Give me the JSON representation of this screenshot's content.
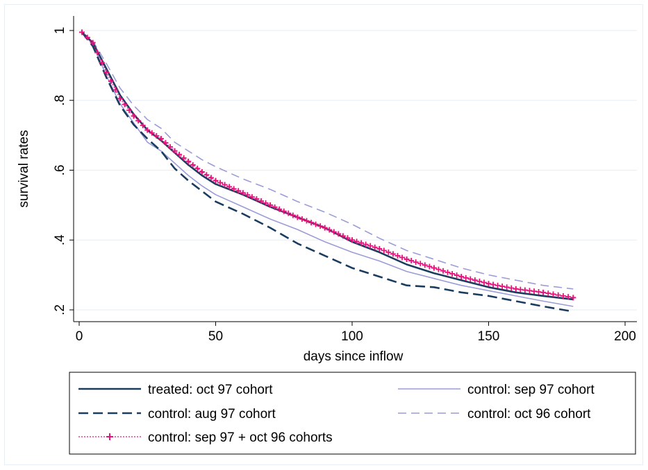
{
  "chart_data": {
    "type": "line",
    "xlabel": "days since inflow",
    "ylabel": "survival rates",
    "xlim": [
      0,
      200
    ],
    "ylim": [
      0.2,
      1.0
    ],
    "x_ticks": [
      0,
      50,
      100,
      150,
      200
    ],
    "x_tick_labels": [
      "0",
      "50",
      "100",
      "150",
      "200"
    ],
    "y_ticks": [
      0.2,
      0.4,
      0.6,
      0.8,
      1.0
    ],
    "y_tick_labels": [
      ".2",
      ".4",
      ".6",
      ".8",
      "1"
    ],
    "grid": "horizontal",
    "legend_placement": "bottom",
    "series": [
      {
        "name": "treated: oct 97 cohort",
        "color": "#1a3c5e",
        "style": "solid",
        "x": [
          1,
          5,
          10,
          15,
          20,
          25,
          30,
          35,
          40,
          45,
          50,
          60,
          70,
          80,
          90,
          100,
          110,
          120,
          130,
          140,
          150,
          160,
          170,
          181
        ],
        "y": [
          0.995,
          0.965,
          0.89,
          0.815,
          0.76,
          0.715,
          0.685,
          0.65,
          0.615,
          0.585,
          0.56,
          0.53,
          0.495,
          0.465,
          0.435,
          0.395,
          0.365,
          0.33,
          0.305,
          0.285,
          0.265,
          0.25,
          0.24,
          0.23
        ]
      },
      {
        "name": "control: sep 97 cohort",
        "color": "#9b9bd8",
        "style": "solid",
        "x": [
          1,
          5,
          10,
          15,
          20,
          25,
          30,
          35,
          40,
          45,
          50,
          60,
          70,
          80,
          90,
          100,
          110,
          120,
          130,
          140,
          150,
          160,
          170,
          181
        ],
        "y": [
          0.995,
          0.96,
          0.87,
          0.79,
          0.735,
          0.68,
          0.655,
          0.62,
          0.585,
          0.555,
          0.53,
          0.495,
          0.46,
          0.43,
          0.395,
          0.365,
          0.34,
          0.31,
          0.29,
          0.27,
          0.255,
          0.24,
          0.225,
          0.21
        ]
      },
      {
        "name": "control: aug 97 cohort",
        "color": "#1a3c5e",
        "style": "dashed",
        "x": [
          1,
          5,
          10,
          15,
          20,
          25,
          30,
          35,
          40,
          45,
          50,
          60,
          70,
          80,
          90,
          100,
          110,
          120,
          130,
          140,
          150,
          160,
          170,
          181
        ],
        "y": [
          0.995,
          0.955,
          0.865,
          0.785,
          0.73,
          0.69,
          0.655,
          0.605,
          0.57,
          0.54,
          0.51,
          0.475,
          0.435,
          0.39,
          0.355,
          0.32,
          0.295,
          0.27,
          0.265,
          0.25,
          0.24,
          0.225,
          0.21,
          0.195
        ]
      },
      {
        "name": "control: oct 96 cohort",
        "color": "#9b9bd8",
        "style": "dashed",
        "x": [
          1,
          5,
          10,
          15,
          20,
          25,
          30,
          35,
          40,
          45,
          50,
          60,
          70,
          80,
          90,
          100,
          110,
          120,
          130,
          140,
          150,
          160,
          170,
          181
        ],
        "y": [
          0.995,
          0.97,
          0.905,
          0.835,
          0.785,
          0.745,
          0.72,
          0.68,
          0.655,
          0.63,
          0.61,
          0.575,
          0.545,
          0.51,
          0.48,
          0.445,
          0.405,
          0.37,
          0.345,
          0.32,
          0.3,
          0.285,
          0.27,
          0.26
        ]
      },
      {
        "name": "control: sep 97 + oct 96 cohorts",
        "color": "#e8127c",
        "style": "dotted-plus",
        "x": [
          1,
          5,
          10,
          15,
          20,
          25,
          30,
          35,
          40,
          45,
          50,
          60,
          70,
          80,
          90,
          100,
          110,
          120,
          130,
          140,
          150,
          160,
          170,
          181
        ],
        "y": [
          0.995,
          0.965,
          0.88,
          0.805,
          0.755,
          0.715,
          0.69,
          0.655,
          0.625,
          0.595,
          0.57,
          0.535,
          0.5,
          0.465,
          0.435,
          0.4,
          0.375,
          0.345,
          0.32,
          0.295,
          0.275,
          0.26,
          0.25,
          0.235
        ]
      }
    ],
    "legend_layout": [
      [
        "treated: oct 97 cohort",
        "control: sep 97 cohort"
      ],
      [
        "control: aug 97 cohort",
        "control: oct 96 cohort"
      ],
      [
        "control: sep 97 + oct 96 cohorts"
      ]
    ]
  }
}
